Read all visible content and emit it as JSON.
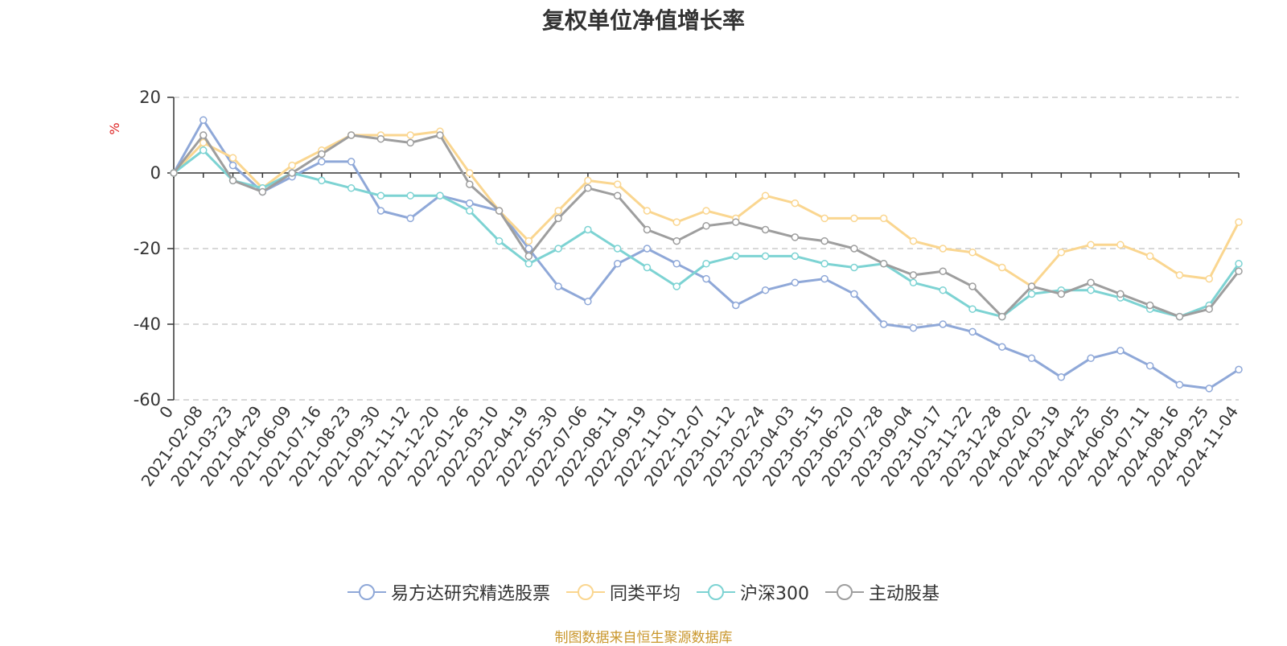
{
  "chart_data": {
    "type": "line",
    "title": "复权单位净值增长率",
    "ylabel": "%",
    "ylim": [
      -60,
      20
    ],
    "yticks": [
      20,
      0,
      -20,
      -40,
      -60
    ],
    "x_start_label": "0",
    "x_labels": [
      "2021-02-08",
      "2021-03-23",
      "2021-04-29",
      "2021-06-09",
      "2021-07-16",
      "2021-08-23",
      "2021-09-30",
      "2021-11-12",
      "2021-12-20",
      "2022-01-26",
      "2022-03-10",
      "2022-04-19",
      "2022-05-30",
      "2022-07-06",
      "2022-08-11",
      "2022-09-19",
      "2022-11-01",
      "2022-12-07",
      "2023-01-12",
      "2023-02-24",
      "2023-04-03",
      "2023-05-15",
      "2023-06-20",
      "2023-07-28",
      "2023-09-04",
      "2023-10-17",
      "2023-11-22",
      "2023-12-28",
      "2024-02-02",
      "2024-03-19",
      "2024-04-25",
      "2024-06-05",
      "2024-07-11",
      "2024-08-16",
      "2024-09-25",
      "2024-11-04"
    ],
    "series": [
      {
        "name": "易方达研究精选股票",
        "color": "#8fa8d8",
        "values": [
          0,
          14,
          2,
          -5,
          -1,
          3,
          3,
          -10,
          -12,
          -6,
          -8,
          -10,
          -20,
          -30,
          -34,
          -24,
          -20,
          -24,
          -28,
          -35,
          -31,
          -29,
          -28,
          -32,
          -40,
          -41,
          -40,
          -42,
          -46,
          -49,
          -54,
          -49,
          -47,
          -51,
          -56,
          -57,
          -52
        ]
      },
      {
        "name": "同类平均",
        "color": "#fad690",
        "values": [
          0,
          8,
          4,
          -4,
          2,
          6,
          10,
          10,
          10,
          11,
          0,
          -10,
          -18,
          -10,
          -2,
          -3,
          -10,
          -13,
          -10,
          -12,
          -6,
          -8,
          -12,
          -12,
          -12,
          -18,
          -20,
          -21,
          -25,
          -30,
          -21,
          -19,
          -19,
          -22,
          -27,
          -28,
          -13
        ]
      },
      {
        "name": "沪深300",
        "color": "#7dd3d3",
        "values": [
          0,
          6,
          -2,
          -4,
          0,
          -2,
          -4,
          -6,
          -6,
          -6,
          -10,
          -18,
          -24,
          -20,
          -15,
          -20,
          -25,
          -30,
          -24,
          -22,
          -22,
          -22,
          -24,
          -25,
          -24,
          -29,
          -31,
          -36,
          -38,
          -32,
          -31,
          -31,
          -33,
          -36,
          -38,
          -35,
          -24
        ]
      },
      {
        "name": "主动股基",
        "color": "#9e9e9e",
        "values": [
          0,
          10,
          -2,
          -5,
          0,
          5,
          10,
          9,
          8,
          10,
          -3,
          -10,
          -22,
          -12,
          -4,
          -6,
          -15,
          -18,
          -14,
          -13,
          -15,
          -17,
          -18,
          -20,
          -24,
          -27,
          -26,
          -30,
          -38,
          -30,
          -32,
          -29,
          -32,
          -35,
          -38,
          -36,
          -26
        ]
      }
    ]
  },
  "source_note": "制图数据来自恒生聚源数据库"
}
